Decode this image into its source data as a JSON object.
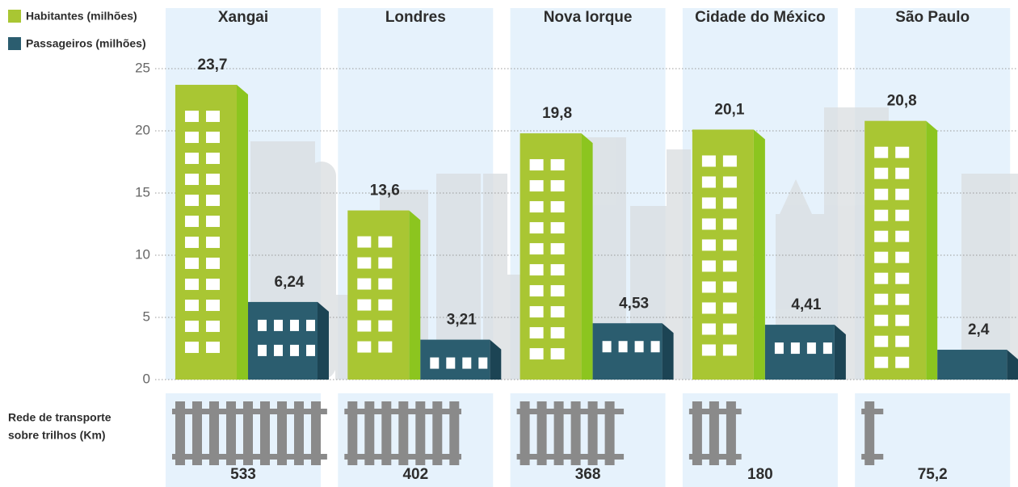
{
  "chart_data": {
    "type": "bar",
    "categories": [
      "Xangai",
      "Londres",
      "Nova Iorque",
      "Cidade do México",
      "São Paulo"
    ],
    "series": [
      {
        "name": "Habitantes (milhões)",
        "color": "#a9c633",
        "side_color": "#8cc51f",
        "values": [
          23.7,
          13.6,
          19.8,
          20.1,
          20.8
        ],
        "value_labels": [
          "23,7",
          "13,6",
          "19,8",
          "20,1",
          "20,8"
        ]
      },
      {
        "name": "Passageiros (milhões)",
        "color": "#2b5d6f",
        "side_color": "#1c4454",
        "values": [
          6.24,
          3.21,
          4.53,
          4.41,
          2.4
        ],
        "value_labels": [
          "6,24",
          "3,21",
          "4,53",
          "4,41",
          "2,4"
        ]
      }
    ],
    "ylim": [
      0,
      25
    ],
    "yticks": [
      0,
      5,
      10,
      15,
      20,
      25
    ],
    "grid": true,
    "rail": {
      "label_lines": [
        "Rede de transporte",
        "sobre trilhos (Km)"
      ],
      "color": "#8a8a8a",
      "values": [
        533,
        402,
        368,
        180,
        75.2
      ],
      "value_labels": [
        "533",
        "402",
        "368",
        "180",
        "75,2"
      ]
    }
  }
}
